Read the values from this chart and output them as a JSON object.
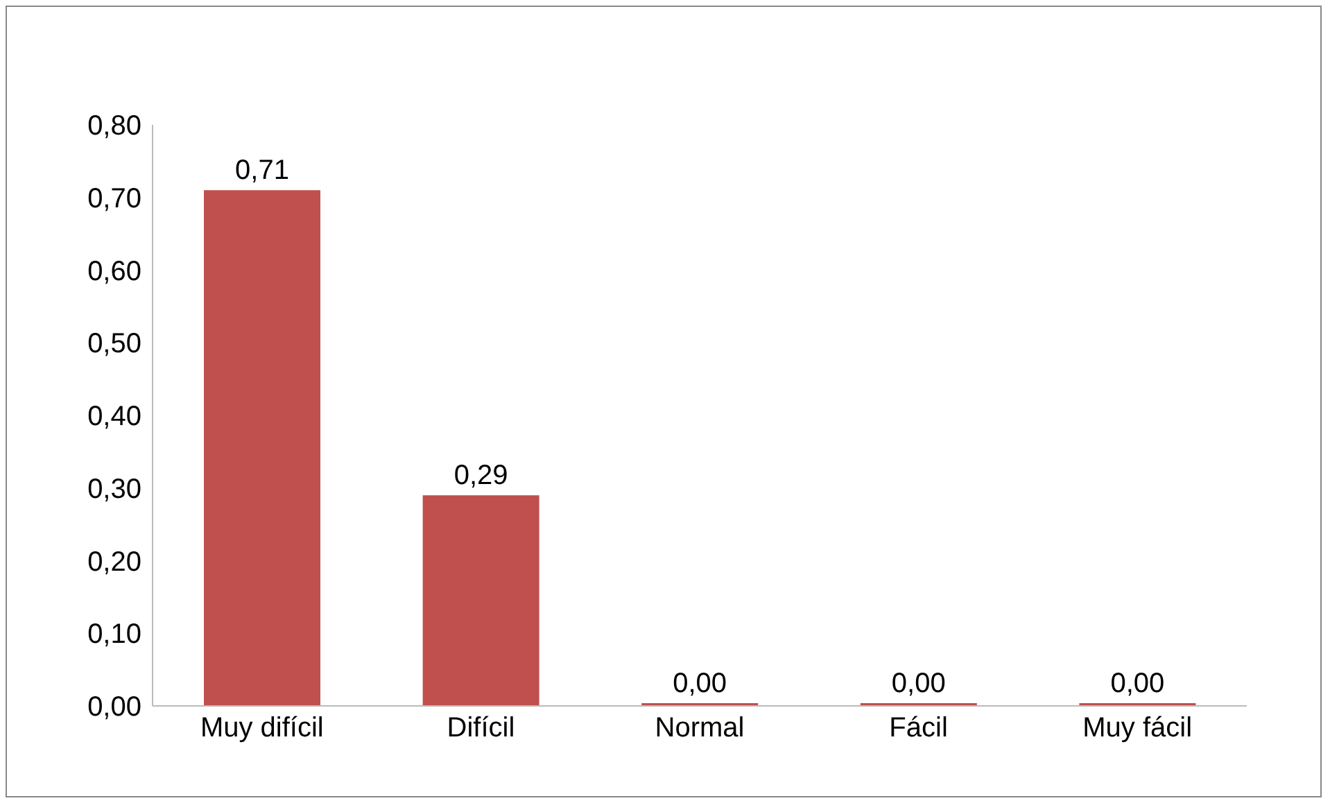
{
  "chart_data": {
    "type": "bar",
    "categories": [
      "Muy difícil",
      "Difícil",
      "Normal",
      "Fácil",
      "Muy fácil"
    ],
    "values": [
      0.71,
      0.29,
      0,
      0,
      0
    ],
    "color": "#c0504d",
    "value_labels": [
      "0,71",
      "0,29",
      "0,00",
      "0,00",
      "0,00"
    ],
    "ylim": [
      0,
      0.8
    ],
    "yticks": [
      {
        "value": 0,
        "label": "0,00"
      },
      {
        "value": 0.1,
        "label": "0,10"
      },
      {
        "value": 0.2,
        "label": "0,20"
      },
      {
        "value": 0.3,
        "label": "0,30"
      },
      {
        "value": 0.4,
        "label": "0,40"
      },
      {
        "value": 0.5,
        "label": "0,50"
      },
      {
        "value": 0.6,
        "label": "0,60"
      },
      {
        "value": 0.7,
        "label": "0,70"
      },
      {
        "value": 0.8,
        "label": "0,80"
      }
    ],
    "grid": false,
    "legend": false
  }
}
